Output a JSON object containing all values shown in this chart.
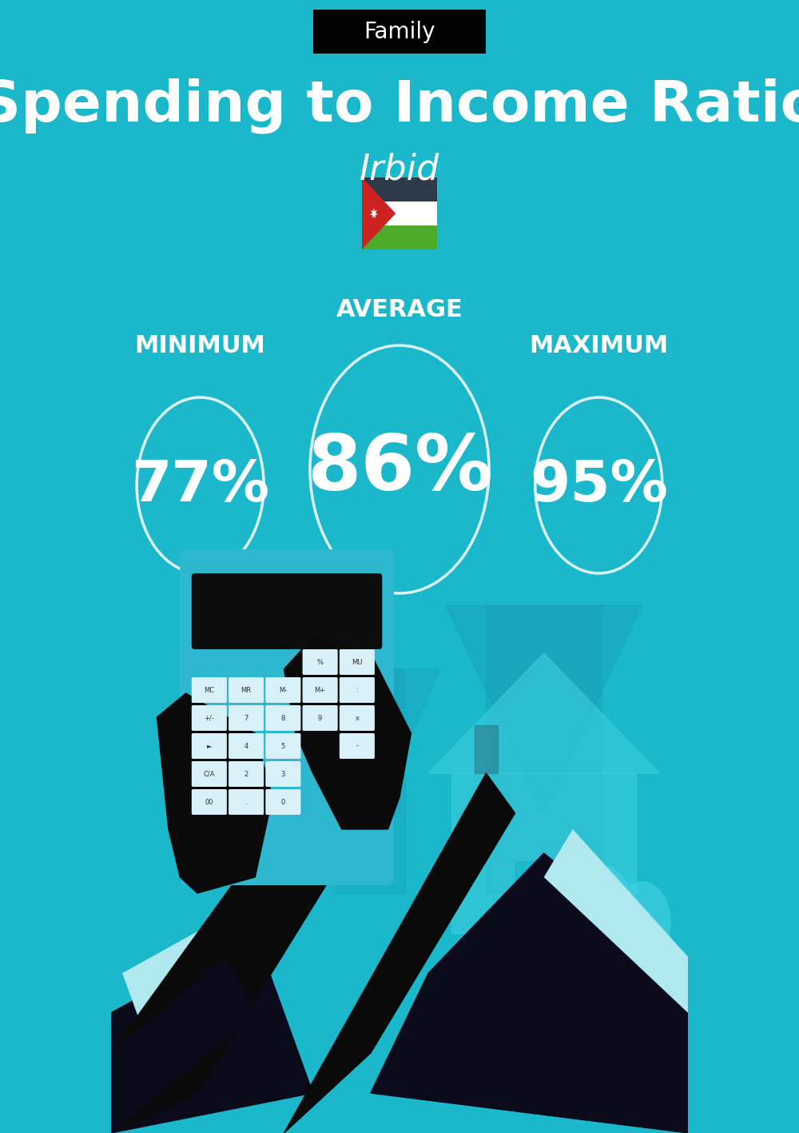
{
  "title": "Spending to Income Ratio",
  "subtitle": "Irbid",
  "category_label": "Family",
  "bg_color": "#1bb8cc",
  "min_value": "77%",
  "avg_value": "86%",
  "max_value": "95%",
  "min_label": "MINIMUM",
  "avg_label": "AVERAGE",
  "max_label": "MAXIMUM",
  "text_color": "#ffffff",
  "circle_color": "#ffffff",
  "circle_linewidth": 2.5,
  "title_fontsize": 52,
  "subtitle_fontsize": 32,
  "label_fontsize": 22,
  "value_fontsize_small": 52,
  "value_fontsize_large": 70,
  "header_bg": "#000000",
  "header_text_color": "#ffffff",
  "header_fontsize": 20
}
